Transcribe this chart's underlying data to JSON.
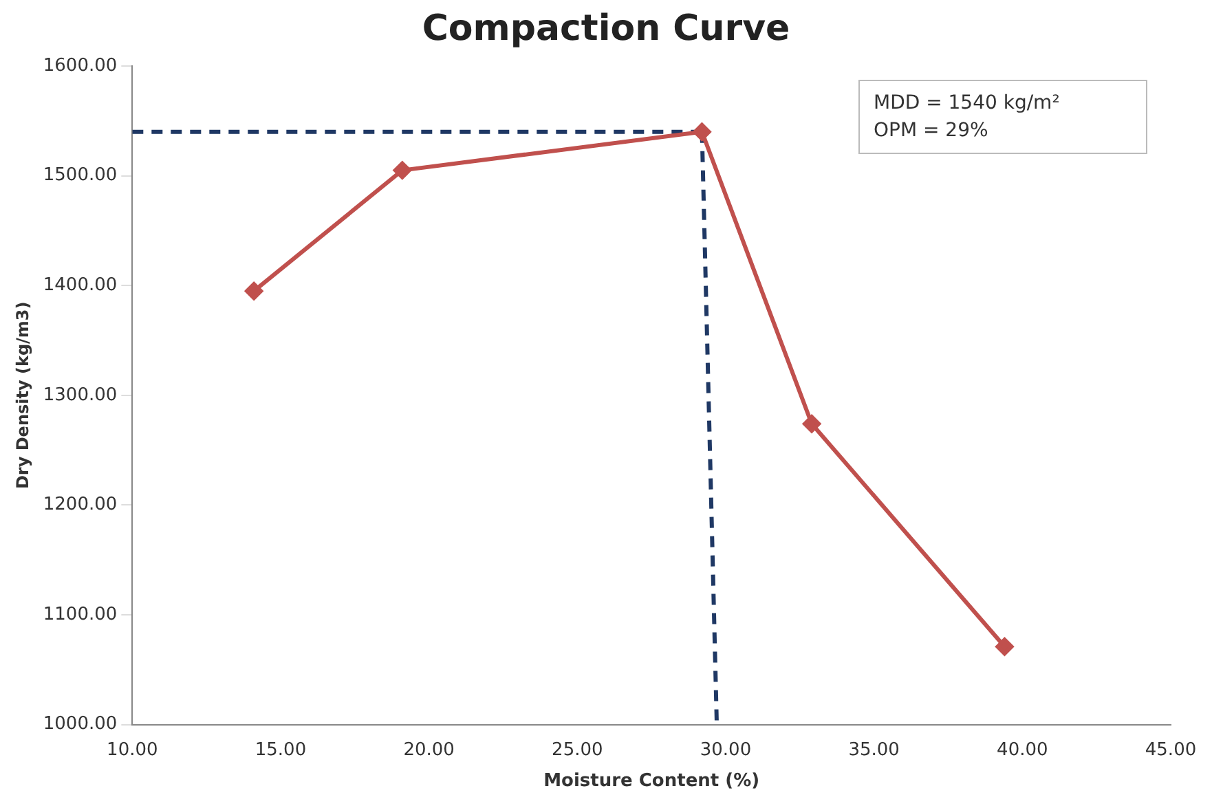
{
  "chart_data": {
    "type": "line",
    "title": "Compaction Curve",
    "xlabel": "Moisture Content (%)",
    "ylabel": "Dry Density (kg/m3)",
    "annotations": [
      "MDD = 1540  kg/m²",
      "OPM = 29%"
    ],
    "series": [
      {
        "color": "#c0504d",
        "x": [
          14.1,
          19.1,
          29.2,
          32.9,
          39.4
        ],
        "values": [
          1395,
          1505,
          1540,
          1274,
          1071
        ],
        "marker": "diamond",
        "line_style": "solid"
      },
      {
        "color": "#1f3864",
        "x": [
          10,
          29.2
        ],
        "values": [
          1540,
          1540
        ],
        "marker": "none",
        "line_style": "dashed"
      },
      {
        "color": "#1f3864",
        "x": [
          29.2,
          29.7
        ],
        "values": [
          1540,
          1000
        ],
        "marker": "none",
        "line_style": "dashed"
      }
    ],
    "xlim": [
      10,
      45
    ],
    "xticks": [
      {
        "value": 10,
        "label": "10.00"
      },
      {
        "value": 15,
        "label": "15.00"
      },
      {
        "value": 20,
        "label": "20.00"
      },
      {
        "value": 25,
        "label": "25.00"
      },
      {
        "value": 30,
        "label": "30.00"
      },
      {
        "value": 35,
        "label": "35.00"
      },
      {
        "value": 40,
        "label": "40.00"
      },
      {
        "value": 45,
        "label": "45.00"
      }
    ],
    "ylim": [
      1000,
      1600
    ],
    "yticks": [
      {
        "value": 1000,
        "label": "1000.00"
      },
      {
        "value": 1100,
        "label": "1100.00"
      },
      {
        "value": 1200,
        "label": "1200.00"
      },
      {
        "value": 1300,
        "label": "1300.00"
      },
      {
        "value": 1400,
        "label": "1400.00"
      },
      {
        "value": 1500,
        "label": "1500.00"
      },
      {
        "value": 1600,
        "label": "1600.00"
      }
    ],
    "grid": false,
    "legend": false
  }
}
